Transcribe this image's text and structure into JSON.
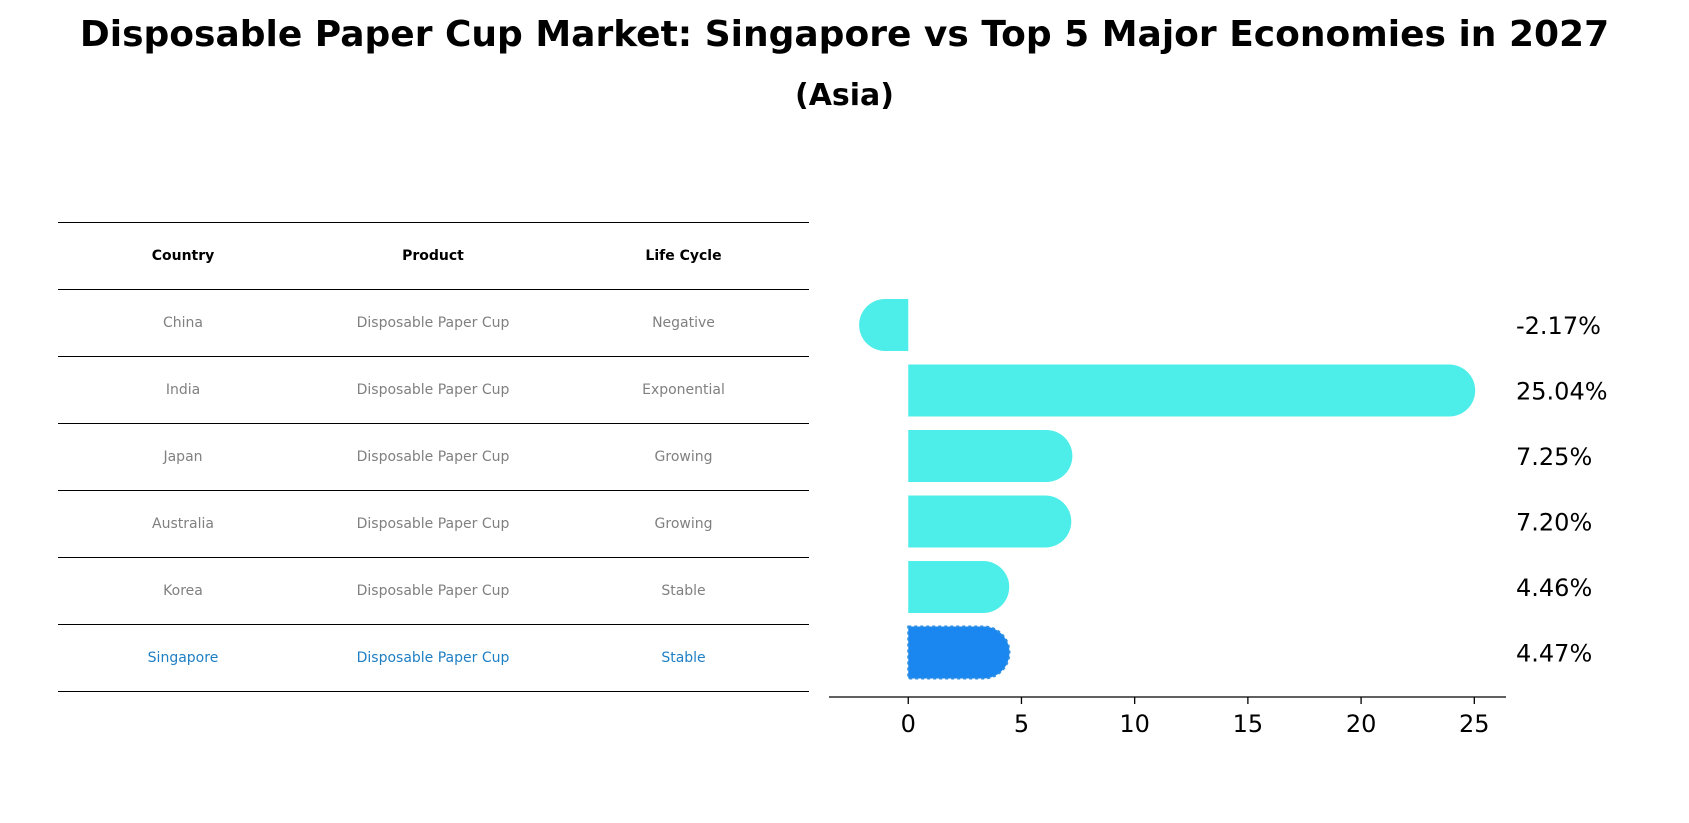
{
  "header": {
    "title": "Disposable Paper Cup Market: Singapore vs Top 5 Major Economies in 2027",
    "subtitle": "(Asia)"
  },
  "table": {
    "columns": [
      "Country",
      "Product",
      "Life Cycle"
    ],
    "rows": [
      {
        "country": "China",
        "product": "Disposable Paper Cup",
        "life_cycle": "Negative"
      },
      {
        "country": "India",
        "product": "Disposable Paper Cup",
        "life_cycle": "Exponential"
      },
      {
        "country": "Japan",
        "product": "Disposable Paper Cup",
        "life_cycle": "Growing"
      },
      {
        "country": "Australia",
        "product": "Disposable Paper Cup",
        "life_cycle": "Growing"
      },
      {
        "country": "Korea",
        "product": "Disposable Paper Cup",
        "life_cycle": "Stable"
      },
      {
        "country": "Singapore",
        "product": "Disposable Paper Cup",
        "life_cycle": "Stable"
      }
    ]
  },
  "chart_data": {
    "type": "bar",
    "orientation": "horizontal",
    "categories": [
      "China",
      "India",
      "Japan",
      "Australia",
      "Korea",
      "Singapore"
    ],
    "values": [
      -2.17,
      25.04,
      7.25,
      7.2,
      4.46,
      4.47
    ],
    "value_labels": [
      "-2.17%",
      "25.04%",
      "7.25%",
      "7.20%",
      "4.46%",
      "4.47%"
    ],
    "highlight_index": 5,
    "xlim": [
      -3.5,
      26.4
    ],
    "xticks": [
      0,
      5,
      10,
      15,
      20,
      25
    ],
    "xtick_labels": [
      "0",
      "5",
      "10",
      "15",
      "20",
      "25"
    ],
    "colors": {
      "bar": "#4dede9",
      "highlight": "#1a86f0"
    }
  }
}
